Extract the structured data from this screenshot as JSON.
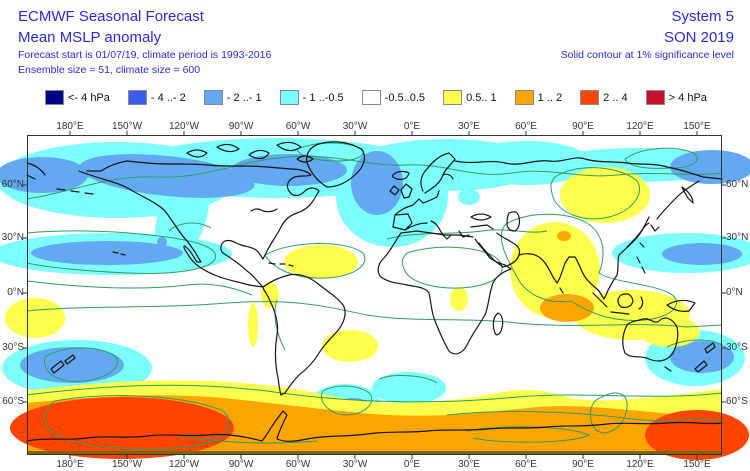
{
  "header": {
    "title": "ECMWF Seasonal Forecast",
    "subtitle": "Mean MSLP anomaly",
    "forecast_line": "Forecast start is 01/07/19, climate period is 1993-2016",
    "ensemble_line": "Ensemble size = 51, climate size = 600",
    "system": "System 5",
    "season": "SON 2019",
    "significance_note": "Solid contour at 1% significance level",
    "text_color": "#2a2ad0"
  },
  "legend": {
    "items": [
      {
        "label": "<- 4 hPa",
        "color": "#000089"
      },
      {
        "label": "- 4 ..- 2",
        "color": "#3c5cee"
      },
      {
        "label": "- 2 ..- 1",
        "color": "#63a9f1"
      },
      {
        "label": "- 1 ..-0.5",
        "color": "#7dffff"
      },
      {
        "label": "-0.5..0.5",
        "color": "#ffffff"
      },
      {
        "label": "0.5.. 1",
        "color": "#ffff4d"
      },
      {
        "label": "1 .. 2",
        "color": "#ffa500"
      },
      {
        "label": "2 .. 4",
        "color": "#ff4500"
      },
      {
        "label": "> 4 hPa",
        "color": "#c8102e"
      }
    ]
  },
  "map": {
    "lon_labels": [
      "180°E",
      "150°W",
      "120°W",
      "90°W",
      "60°W",
      "30°W",
      "0°E",
      "30°E",
      "60°E",
      "90°E",
      "120°E",
      "150°E"
    ],
    "lat_labels": [
      "60°N",
      "30°N",
      "0°N",
      "30°S",
      "60°S"
    ],
    "colors": {
      "background": "#ffffff",
      "cyan": "#7dffff",
      "light_blue": "#63a9f1",
      "yellow": "#ffff4d",
      "orange": "#ffa500",
      "orange_red": "#ff4500",
      "contour_green": "#2e9e5e",
      "coastline": "#151515",
      "frame": "#333333",
      "bottom_strip_olive": "#7d6608"
    }
  },
  "chart_data": {
    "type": "heatmap",
    "title": "Mean MSLP anomaly",
    "subtitle": "ECMWF Seasonal Forecast, System 5, SON 2019",
    "unit": "hPa",
    "annotation": "Solid contour at 1% significance level",
    "x_ticks": [
      "180°E",
      "150°W",
      "120°W",
      "90°W",
      "60°W",
      "30°W",
      "0°E",
      "30°E",
      "60°E",
      "90°E",
      "120°E",
      "150°E"
    ],
    "y_ticks": [
      "60°N",
      "30°N",
      "0°N",
      "30°S",
      "60°S"
    ],
    "bins": [
      {
        "label": "<- 4 hPa",
        "range": [
          null,
          -4
        ],
        "color": "#000089"
      },
      {
        "label": "- 4 ..- 2",
        "range": [
          -4,
          -2
        ],
        "color": "#3c5cee"
      },
      {
        "label": "- 2 ..- 1",
        "range": [
          -2,
          -1
        ],
        "color": "#63a9f1"
      },
      {
        "label": "- 1 ..-0.5",
        "range": [
          -1,
          -0.5
        ],
        "color": "#7dffff"
      },
      {
        "label": "-0.5..0.5",
        "range": [
          -0.5,
          0.5
        ],
        "color": "#ffffff"
      },
      {
        "label": "0.5.. 1",
        "range": [
          0.5,
          1
        ],
        "color": "#ffff4d"
      },
      {
        "label": "1 .. 2",
        "range": [
          1,
          2
        ],
        "color": "#ffa500"
      },
      {
        "label": "2 .. 4",
        "range": [
          2,
          4
        ],
        "color": "#ff4500"
      },
      {
        "label": "> 4 hPa",
        "range": [
          4,
          null
        ],
        "color": "#c8102e"
      }
    ],
    "regions": [
      {
        "area": "Arctic basin and high-latitude band (pan-Arctic)",
        "value_hpa": "-1 .. -0.5"
      },
      {
        "area": "Bering Sea / Alaska / Arctic Canada coast",
        "value_hpa": "-2 .. -1"
      },
      {
        "area": "Greenland and NE Canada",
        "value_hpa": "-2 .. -1"
      },
      {
        "area": "Subtropical North Pacific (~30N, west-central)",
        "value_hpa": "-2 .. -1 core in -1 .. -0.5 band"
      },
      {
        "area": "NW Pacific east of Japan (~30N)",
        "value_hpa": "-2 .. -1 core in -1 .. -0.5 band"
      },
      {
        "area": "Tropical North Atlantic east of Caribbean",
        "value_hpa": "0.5 .. 1"
      },
      {
        "area": "Mongolia / northern China",
        "value_hpa": "0.5 .. 1"
      },
      {
        "area": "India / Tibet",
        "value_hpa": "0.5 .. 1 with 1 .. 2 spots"
      },
      {
        "area": "Bay of Bengal / Indonesia / N Australia",
        "value_hpa": "0.5 .. 1 with 1 .. 2 core"
      },
      {
        "area": "Subtropical South Atlantic off Brazil",
        "value_hpa": "0.5 .. 1"
      },
      {
        "area": "Equatorial west Pacific (left edge)",
        "value_hpa": "0.5 .. 1"
      },
      {
        "area": "Around New Zealand (~40S)",
        "value_hpa": "-2 .. -1 core in -1 .. -0.5 band"
      },
      {
        "area": "South Atlantic (~55S)",
        "value_hpa": "-2 .. -1 core in -1 .. -0.5 band"
      },
      {
        "area": "South Indian Ocean (~50S)",
        "value_hpa": "-1 .. -0.5"
      },
      {
        "area": "Circumpolar Southern Ocean / Antarctic band",
        "value_hpa": "1 .. 2"
      },
      {
        "area": "Southern Ocean Pacific sector (south of NZ)",
        "value_hpa": "2 .. 4"
      },
      {
        "area": "Southern Ocean ~140E sector",
        "value_hpa": "2 .. 4"
      },
      {
        "area": "Mid-latitude continents (N America, Europe, Africa, S America interior)",
        "value_hpa": "-0.5 .. 0.5"
      }
    ]
  }
}
